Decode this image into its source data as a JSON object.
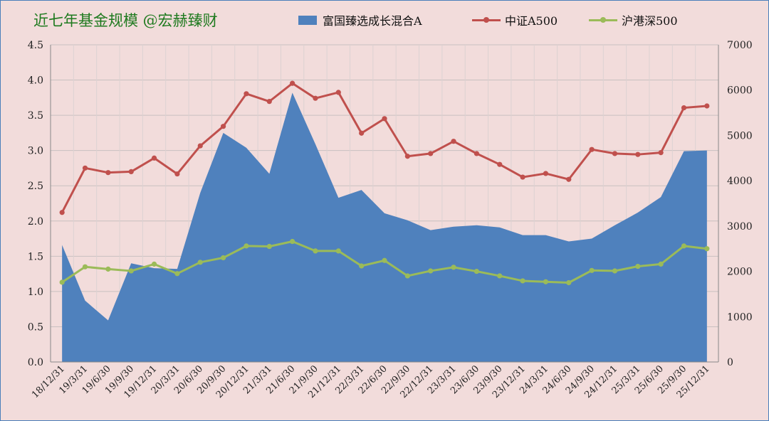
{
  "title": "近七年基金规模 @宏赫臻财",
  "chart_data": {
    "type": "area+line",
    "categories": [
      "18/12/31",
      "19/3/31",
      "19/6/30",
      "19/9/30",
      "19/12/31",
      "20/3/31",
      "20/6/30",
      "20/9/30",
      "20/12/31",
      "21/3/31",
      "21/6/30",
      "21/9/30",
      "21/12/31",
      "22/3/31",
      "22/6/30",
      "22/9/30",
      "22/12/31",
      "23/3/31",
      "23/6/30",
      "23/9/30",
      "23/12/31",
      "24/3/31",
      "24/6/30",
      "24/9/30",
      "24/12/31",
      "25/3/31",
      "25/6/30",
      "25/9/30",
      "25/12/31"
    ],
    "series": [
      {
        "name": "富国臻选成长混合A",
        "type": "area",
        "axis": "left",
        "color": "#4f81bd",
        "values": [
          1.66,
          0.87,
          0.59,
          1.4,
          1.33,
          1.32,
          2.4,
          3.25,
          3.04,
          2.67,
          3.82,
          3.09,
          2.33,
          2.44,
          2.11,
          2.01,
          1.87,
          1.92,
          1.94,
          1.91,
          1.8,
          1.8,
          1.71,
          1.75,
          1.94,
          2.12,
          2.34,
          2.99,
          3.0
        ]
      },
      {
        "name": "中证A500",
        "type": "line",
        "axis": "right",
        "color": "#c0504d",
        "values": [
          3300,
          4280,
          4180,
          4200,
          4500,
          4150,
          4770,
          5200,
          5920,
          5750,
          6150,
          5820,
          5950,
          5050,
          5370,
          4540,
          4600,
          4870,
          4600,
          4360,
          4080,
          4160,
          4030,
          4690,
          4600,
          4580,
          4620,
          5610,
          5650
        ]
      },
      {
        "name": "沪港深500",
        "type": "line",
        "axis": "right",
        "color": "#9bbb59",
        "values": [
          1760,
          2100,
          2050,
          2010,
          2160,
          1950,
          2200,
          2300,
          2560,
          2550,
          2660,
          2450,
          2450,
          2120,
          2240,
          1900,
          2010,
          2090,
          2000,
          1900,
          1790,
          1770,
          1750,
          2020,
          2010,
          2110,
          2160,
          2560,
          2500
        ]
      }
    ],
    "y_left": {
      "min": 0,
      "max": 4.5,
      "ticks": [
        "0.0",
        "0.5",
        "1.0",
        "1.5",
        "2.0",
        "2.5",
        "3.0",
        "3.5",
        "4.0",
        "4.5"
      ]
    },
    "y_right": {
      "min": 0,
      "max": 7000,
      "ticks": [
        "0",
        "1000",
        "2000",
        "3000",
        "4000",
        "5000",
        "6000",
        "7000"
      ]
    },
    "grid": true,
    "legend_position": "top"
  }
}
